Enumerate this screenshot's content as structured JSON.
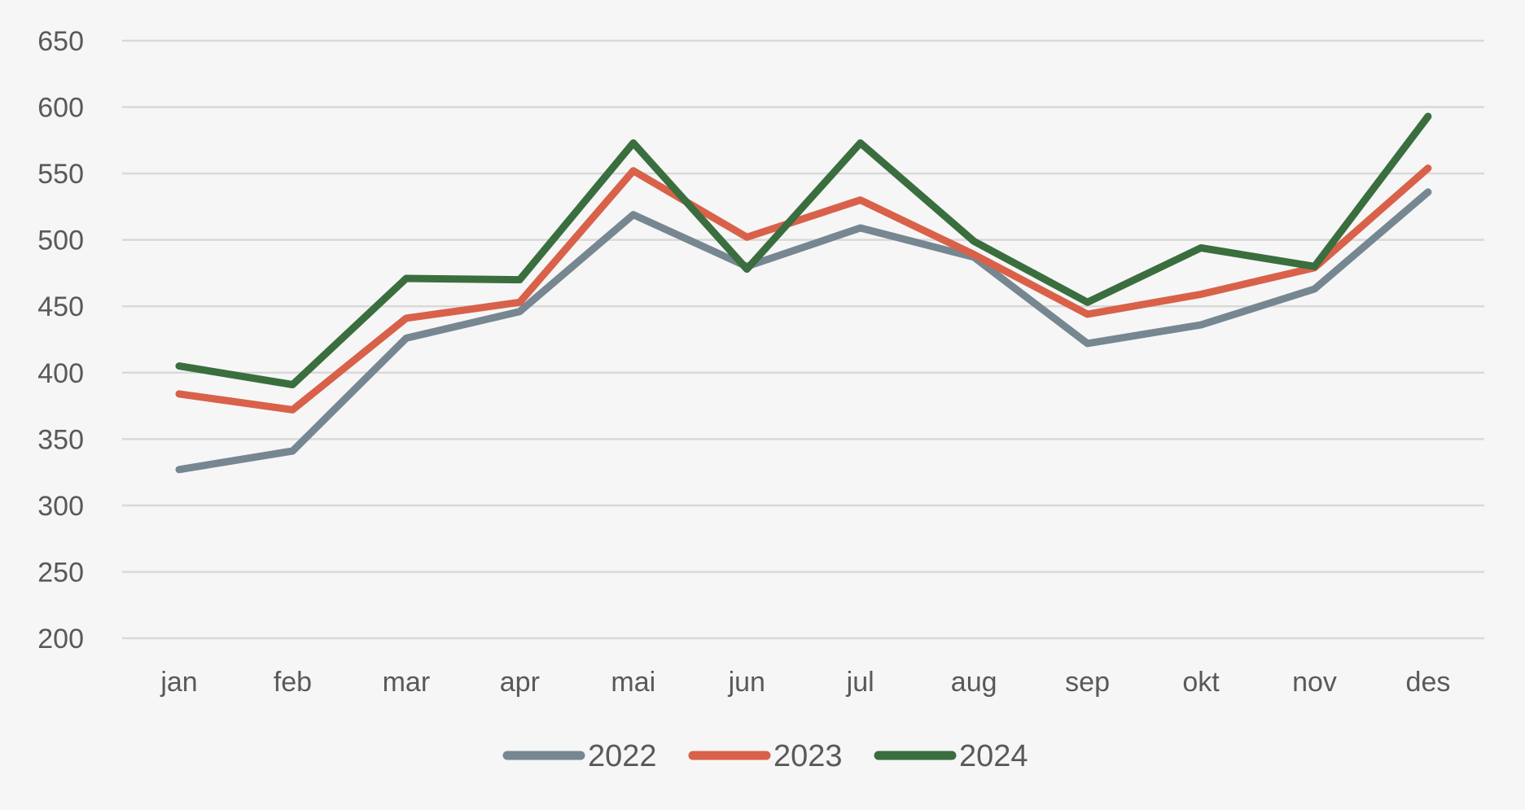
{
  "chart_data": {
    "type": "line",
    "title": "",
    "xlabel": "",
    "ylabel": "",
    "categories": [
      "jan",
      "feb",
      "mar",
      "apr",
      "mai",
      "jun",
      "jul",
      "aug",
      "sep",
      "okt",
      "nov",
      "des"
    ],
    "ylim": [
      200,
      650
    ],
    "yticks": [
      200,
      250,
      300,
      350,
      400,
      450,
      500,
      550,
      600,
      650
    ],
    "grid": true,
    "legend_position": "bottom",
    "series": [
      {
        "name": "2022",
        "color": "#768791",
        "values": [
          327,
          341,
          426,
          446,
          519,
          480,
          509,
          487,
          422,
          436,
          463,
          536
        ]
      },
      {
        "name": "2023",
        "color": "#d9614a",
        "values": [
          384,
          372,
          441,
          453,
          552,
          502,
          530,
          489,
          444,
          459,
          479,
          554
        ]
      },
      {
        "name": "2024",
        "color": "#3a6e3e",
        "values": [
          405,
          391,
          471,
          470,
          573,
          478,
          573,
          499,
          453,
          494,
          480,
          593
        ]
      }
    ]
  }
}
